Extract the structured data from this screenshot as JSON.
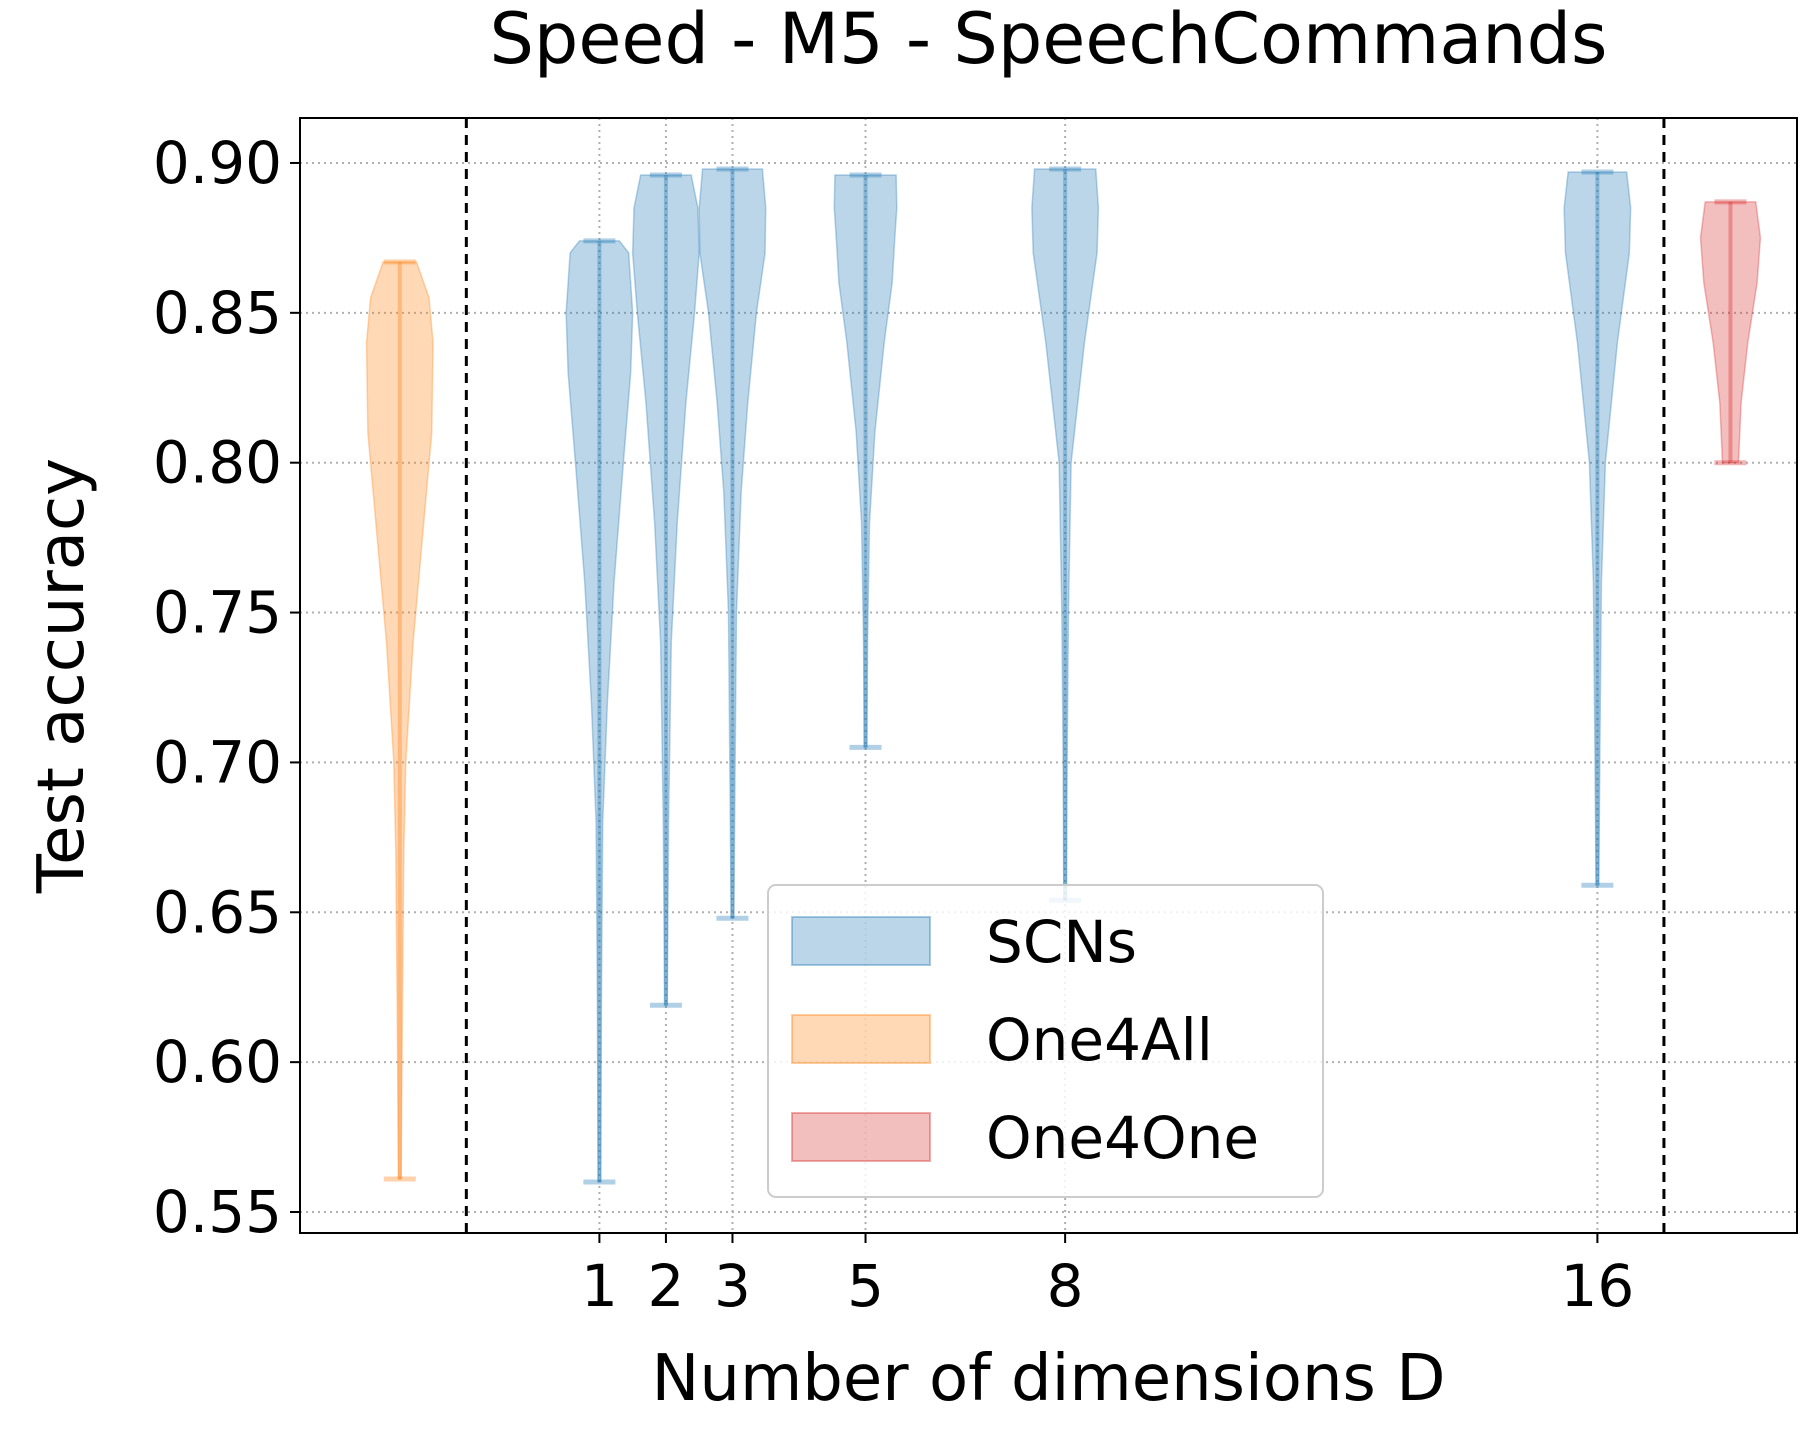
{
  "chart_data": {
    "type": "violin",
    "title": "Speed - M5 - SpeechCommands",
    "xlabel": "Number of dimensions D",
    "ylabel": "Test accuracy",
    "ylim": [
      0.543,
      0.915
    ],
    "xlim": [
      -3.5,
      19.0
    ],
    "x_ticks": [
      1,
      2,
      3,
      5,
      8,
      16
    ],
    "x_tick_labels": [
      "1",
      "2",
      "3",
      "5",
      "8",
      "16"
    ],
    "y_ticks": [
      0.55,
      0.6,
      0.65,
      0.7,
      0.75,
      0.8,
      0.85,
      0.9
    ],
    "y_tick_labels": [
      "0.55",
      "0.60",
      "0.65",
      "0.70",
      "0.75",
      "0.80",
      "0.85",
      "0.90"
    ],
    "grid": true,
    "separators_x": [
      -1.0,
      17.0
    ],
    "legend": {
      "position": "lower-center",
      "entries": [
        {
          "label": "SCNs",
          "color": "#1f77b4"
        },
        {
          "label": "One4All",
          "color": "#ff7f0e"
        },
        {
          "label": "One4One",
          "color": "#d62728"
        }
      ]
    },
    "series": [
      {
        "name": "One4All",
        "color": "#ff7f0e",
        "violins": [
          {
            "x": -2.0,
            "min": 0.561,
            "max": 0.867,
            "profile": [
              [
                0.561,
                0.02
              ],
              [
                0.62,
                0.04
              ],
              [
                0.67,
                0.06
              ],
              [
                0.7,
                0.09
              ],
              [
                0.74,
                0.2
              ],
              [
                0.78,
                0.36
              ],
              [
                0.81,
                0.48
              ],
              [
                0.84,
                0.5
              ],
              [
                0.855,
                0.44
              ],
              [
                0.867,
                0.25
              ]
            ]
          }
        ]
      },
      {
        "name": "SCNs",
        "color": "#1f77b4",
        "violins": [
          {
            "x": 1,
            "min": 0.56,
            "max": 0.874,
            "profile": [
              [
                0.56,
                0.02
              ],
              [
                0.62,
                0.03
              ],
              [
                0.68,
                0.05
              ],
              [
                0.72,
                0.12
              ],
              [
                0.76,
                0.22
              ],
              [
                0.8,
                0.36
              ],
              [
                0.83,
                0.47
              ],
              [
                0.85,
                0.5
              ],
              [
                0.87,
                0.44
              ],
              [
                0.874,
                0.3
              ]
            ]
          },
          {
            "x": 2,
            "min": 0.619,
            "max": 0.896,
            "profile": [
              [
                0.619,
                0.02
              ],
              [
                0.68,
                0.04
              ],
              [
                0.74,
                0.08
              ],
              [
                0.78,
                0.17
              ],
              [
                0.82,
                0.3
              ],
              [
                0.85,
                0.43
              ],
              [
                0.87,
                0.5
              ],
              [
                0.885,
                0.48
              ],
              [
                0.896,
                0.38
              ]
            ]
          },
          {
            "x": 3,
            "min": 0.648,
            "max": 0.898,
            "profile": [
              [
                0.648,
                0.02
              ],
              [
                0.7,
                0.04
              ],
              [
                0.75,
                0.06
              ],
              [
                0.79,
                0.13
              ],
              [
                0.82,
                0.23
              ],
              [
                0.85,
                0.36
              ],
              [
                0.87,
                0.49
              ],
              [
                0.885,
                0.5
              ],
              [
                0.898,
                0.45
              ]
            ]
          },
          {
            "x": 5,
            "min": 0.705,
            "max": 0.896,
            "profile": [
              [
                0.705,
                0.02
              ],
              [
                0.74,
                0.03
              ],
              [
                0.78,
                0.06
              ],
              [
                0.81,
                0.14
              ],
              [
                0.84,
                0.28
              ],
              [
                0.86,
                0.4
              ],
              [
                0.875,
                0.44
              ],
              [
                0.885,
                0.47
              ],
              [
                0.896,
                0.46
              ]
            ]
          },
          {
            "x": 8,
            "min": 0.654,
            "max": 0.898,
            "profile": [
              [
                0.654,
                0.02
              ],
              [
                0.7,
                0.03
              ],
              [
                0.75,
                0.05
              ],
              [
                0.8,
                0.09
              ],
              [
                0.84,
                0.29
              ],
              [
                0.87,
                0.48
              ],
              [
                0.885,
                0.5
              ],
              [
                0.898,
                0.46
              ]
            ]
          },
          {
            "x": 16,
            "min": 0.659,
            "max": 0.897,
            "profile": [
              [
                0.659,
                0.02
              ],
              [
                0.71,
                0.04
              ],
              [
                0.76,
                0.06
              ],
              [
                0.8,
                0.12
              ],
              [
                0.84,
                0.3
              ],
              [
                0.87,
                0.48
              ],
              [
                0.885,
                0.5
              ],
              [
                0.897,
                0.44
              ]
            ]
          }
        ]
      },
      {
        "name": "One4One",
        "color": "#d62728",
        "violins": [
          {
            "x": 18.0,
            "min": 0.8,
            "max": 0.887,
            "profile": [
              [
                0.8,
                0.12
              ],
              [
                0.82,
                0.16
              ],
              [
                0.84,
                0.26
              ],
              [
                0.86,
                0.4
              ],
              [
                0.875,
                0.45
              ],
              [
                0.887,
                0.38
              ]
            ]
          }
        ]
      }
    ]
  }
}
